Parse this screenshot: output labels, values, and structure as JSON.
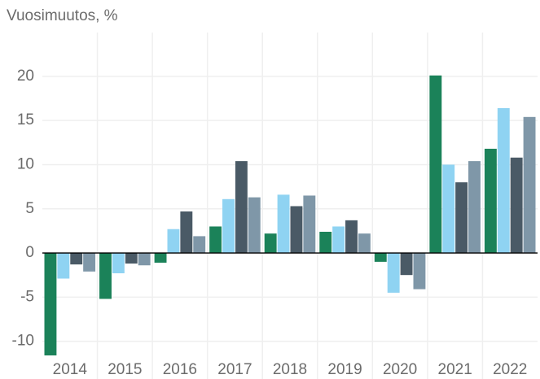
{
  "chart_data": {
    "type": "bar",
    "title": "Vuosimuutos, %",
    "categories": [
      "2014",
      "2015",
      "2016",
      "2017",
      "2018",
      "2019",
      "2020",
      "2021",
      "2022"
    ],
    "series": [
      {
        "color": "#1b8259",
        "values": [
          -11.6,
          -5.2,
          -1.1,
          3.0,
          2.2,
          2.4,
          -1.0,
          20.1,
          11.8
        ]
      },
      {
        "color": "#8fd3f2",
        "values": [
          -2.9,
          -2.3,
          2.7,
          6.1,
          6.6,
          3.0,
          -4.5,
          10.0,
          16.4
        ]
      },
      {
        "color": "#4a5a66",
        "values": [
          -1.3,
          -1.2,
          4.7,
          10.4,
          5.3,
          3.7,
          -2.5,
          8.0,
          10.8
        ]
      },
      {
        "color": "#7f97a8",
        "values": [
          -2.1,
          -1.4,
          1.9,
          6.3,
          6.5,
          2.2,
          -4.1,
          10.4,
          15.4
        ]
      }
    ],
    "ylim": [
      -11.6,
      24.5
    ],
    "yticks": [
      -10,
      -5,
      0,
      5,
      10,
      15,
      20
    ],
    "grid": true
  }
}
